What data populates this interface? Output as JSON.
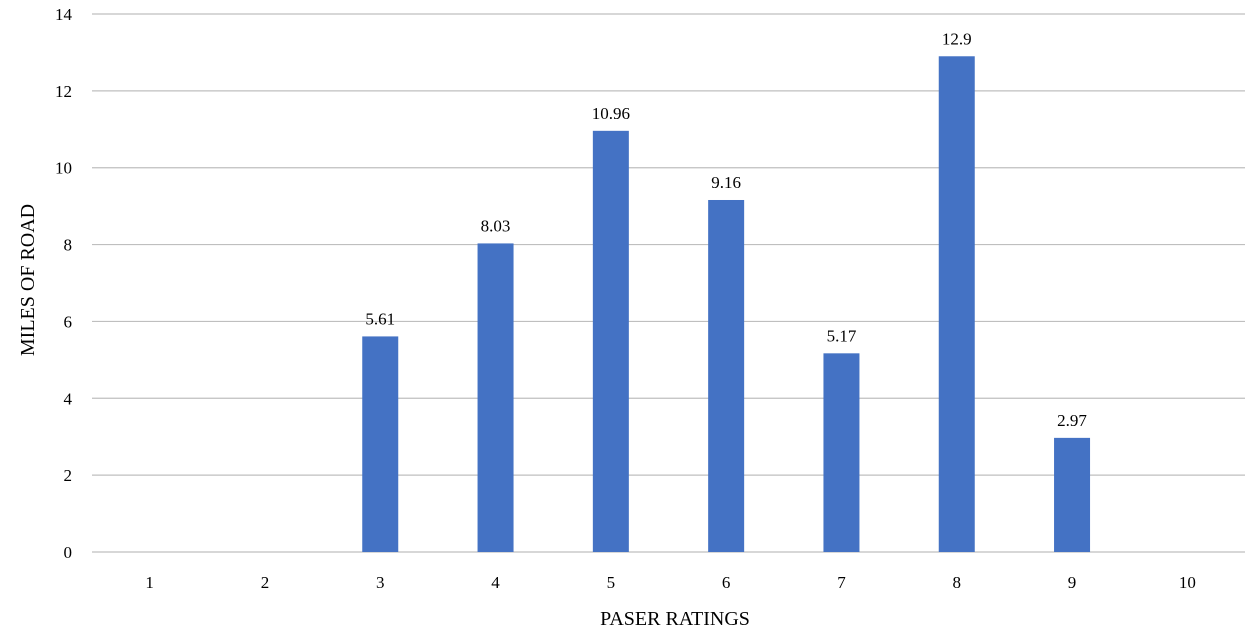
{
  "chart_data": {
    "type": "bar",
    "title": "",
    "xlabel": "PASER RATINGS",
    "ylabel": "MILES OF ROAD",
    "categories": [
      "1",
      "2",
      "3",
      "4",
      "5",
      "6",
      "7",
      "8",
      "9",
      "10"
    ],
    "values": [
      0,
      0,
      5.61,
      8.03,
      10.96,
      9.16,
      5.17,
      12.9,
      2.97,
      0
    ],
    "data_labels": [
      "",
      "",
      "5.61",
      "8.03",
      "10.96",
      "9.16",
      "5.17",
      "12.9",
      "2.97",
      ""
    ],
    "ylim": [
      0,
      14
    ],
    "yticks": [
      0,
      2,
      4,
      6,
      8,
      10,
      12,
      14
    ],
    "grid": true,
    "legend": "none",
    "bar_color": "#4472C4",
    "grid_color": "#BFBFBF"
  }
}
